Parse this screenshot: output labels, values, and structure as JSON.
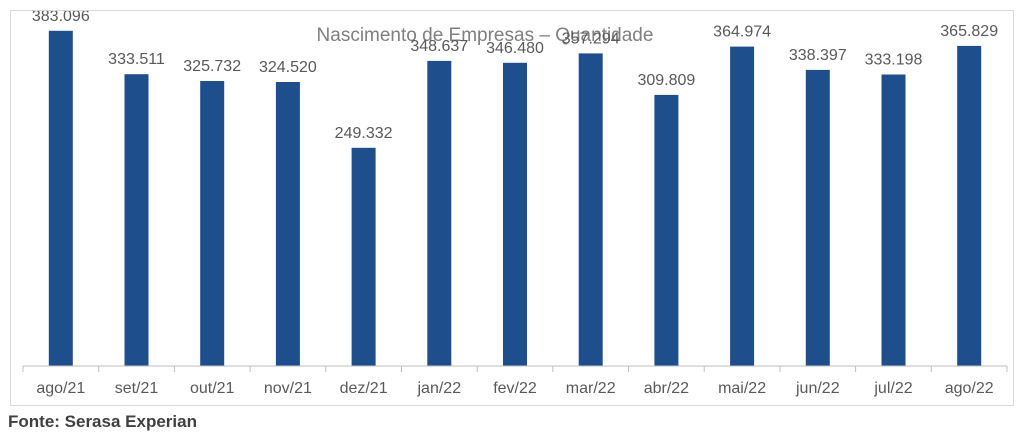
{
  "source": "Fonte: Serasa Experian",
  "chart_data": {
    "type": "bar",
    "title": "Nascimento de Empresas – Quantidade",
    "xlabel": "",
    "ylabel": "",
    "categories": [
      "ago/21",
      "set/21",
      "out/21",
      "nov/21",
      "dez/21",
      "jan/22",
      "fev/22",
      "mar/22",
      "abr/22",
      "mai/22",
      "jun/22",
      "jul/22",
      "ago/22"
    ],
    "values": [
      383096,
      333511,
      325732,
      324520,
      249332,
      348637,
      346480,
      357294,
      309809,
      364974,
      338397,
      333198,
      365829
    ],
    "value_labels": [
      "383.096",
      "333.511",
      "325.732",
      "324.520",
      "249.332",
      "348.637",
      "346.480",
      "357.294",
      "309.809",
      "364.974",
      "338.397",
      "333.198",
      "365.829"
    ],
    "ylim": [
      0,
      400000
    ],
    "grid": false,
    "legend": "none",
    "bar_color": "#1f4e8c",
    "axis_color": "#bfbfbf"
  }
}
